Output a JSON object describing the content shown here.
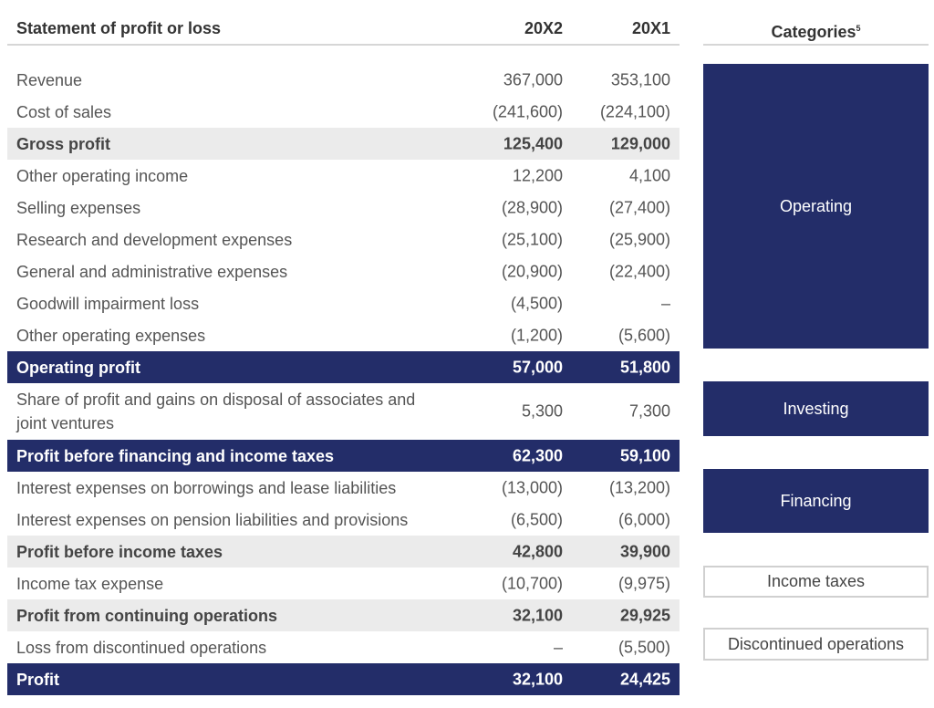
{
  "header": {
    "title": "Statement of profit or loss",
    "col_1": "20X2",
    "col_2": "20X1",
    "categories_title": "Categories",
    "footnote_ref": "5"
  },
  "table": {
    "rows": [
      {
        "label": "Revenue",
        "values": [
          "367,000",
          "353,100"
        ],
        "style": "normal"
      },
      {
        "label": "Cost of sales",
        "values": [
          "(241,600)",
          "(224,100)"
        ],
        "style": "normal"
      },
      {
        "label": "Gross profit",
        "values": [
          "125,400",
          "129,000"
        ],
        "style": "subtotal"
      },
      {
        "label": "Other operating income",
        "values": [
          "12,200",
          "4,100"
        ],
        "style": "normal"
      },
      {
        "label": "Selling expenses",
        "values": [
          "(28,900)",
          "(27,400)"
        ],
        "style": "normal"
      },
      {
        "label": "Research and development expenses",
        "values": [
          "(25,100)",
          "(25,900)"
        ],
        "style": "normal"
      },
      {
        "label": "General and administrative expenses",
        "values": [
          "(20,900)",
          "(22,400)"
        ],
        "style": "normal"
      },
      {
        "label": "Goodwill impairment loss",
        "values": [
          "(4,500)",
          "–"
        ],
        "style": "normal"
      },
      {
        "label": "Other operating expenses",
        "values": [
          "(1,200)",
          "(5,600)"
        ],
        "style": "normal"
      },
      {
        "label": "Operating profit",
        "values": [
          "57,000",
          "51,800"
        ],
        "style": "total"
      },
      {
        "label": "Share of profit and gains on disposal of associates and joint ventures",
        "values": [
          "5,300",
          "7,300"
        ],
        "style": "normal"
      },
      {
        "label": "Profit before financing and income taxes",
        "values": [
          "62,300",
          "59,100"
        ],
        "style": "total"
      },
      {
        "label": "Interest expenses on borrowings and lease liabilities",
        "values": [
          "(13,000)",
          "(13,200)"
        ],
        "style": "normal"
      },
      {
        "label": "Interest expenses on pension liabilities and provisions",
        "values": [
          "(6,500)",
          "(6,000)"
        ],
        "style": "normal"
      },
      {
        "label": "Profit before income taxes",
        "values": [
          "42,800",
          "39,900"
        ],
        "style": "subtotal"
      },
      {
        "label": "Income tax expense",
        "values": [
          "(10,700)",
          "(9,975)"
        ],
        "style": "normal"
      },
      {
        "label": "Profit from continuing operations",
        "values": [
          "32,100",
          "29,925"
        ],
        "style": "subtotal"
      },
      {
        "label": "Loss from discontinued operations",
        "values": [
          "–",
          "(5,500)"
        ],
        "style": "normal"
      },
      {
        "label": "Profit",
        "values": [
          "32,100",
          "24,425"
        ],
        "style": "total"
      }
    ]
  },
  "categories": [
    {
      "label": "Operating",
      "style": "filled"
    },
    {
      "label": "Investing",
      "style": "filled"
    },
    {
      "label": "Financing",
      "style": "filled"
    },
    {
      "label": "Income taxes",
      "style": "outlined"
    },
    {
      "label": "Discontinued operations",
      "style": "outlined"
    }
  ]
}
